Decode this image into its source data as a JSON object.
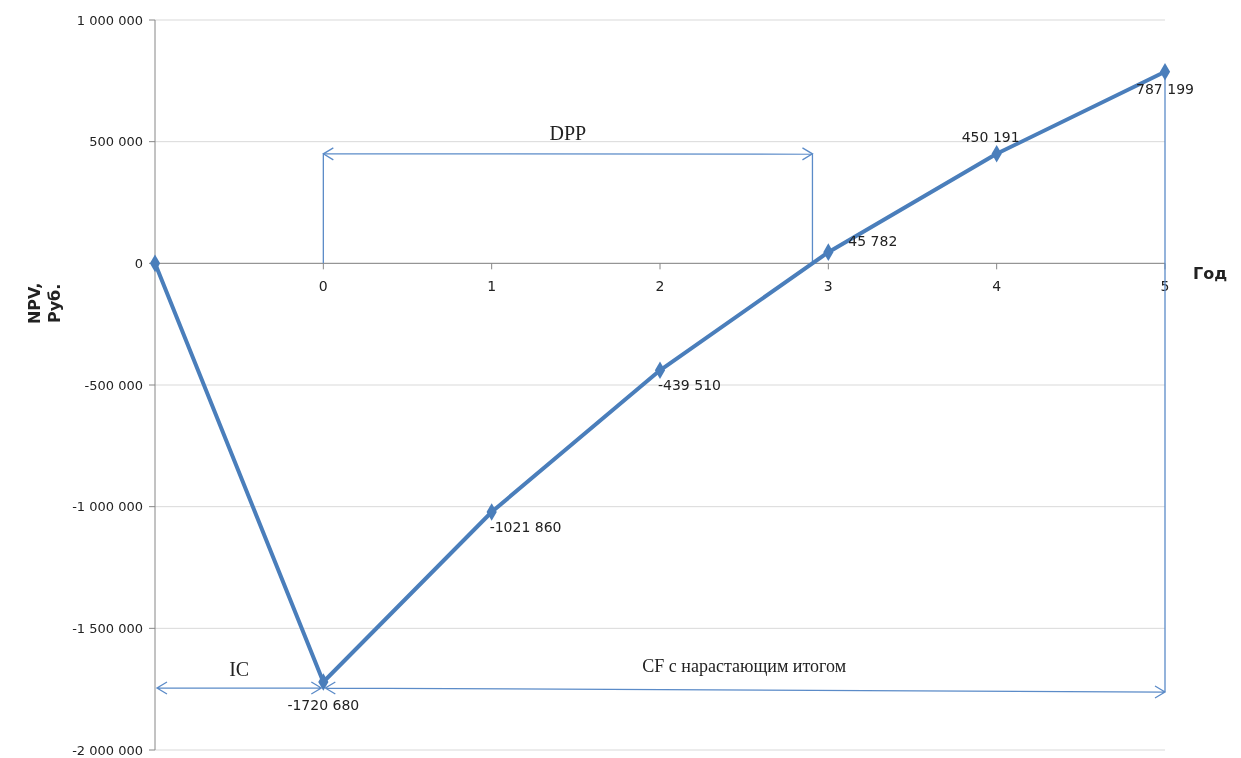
{
  "chart_data": {
    "type": "line",
    "categories": [
      null,
      "0",
      "1",
      "2",
      "3",
      "4",
      "5"
    ],
    "series": [
      {
        "color": "#4a7ebb",
        "values": [
          0,
          -1720680,
          -1021860,
          -439510,
          45782,
          450191,
          787199
        ],
        "value_labels": [
          null,
          "-1720 680",
          "-1021 860",
          "-439 510",
          "45 782",
          "450 191",
          "787 199"
        ]
      }
    ],
    "xlabel": "Год",
    "ylabel": "NPV,\nРуб.",
    "ylim": [
      -2000000,
      1000000
    ],
    "yticks": [
      {
        "value": -2000000,
        "label": "-2 000 000"
      },
      {
        "value": -1500000,
        "label": "-1 500 000"
      },
      {
        "value": -1000000,
        "label": "-1 000 000"
      },
      {
        "value": -500000,
        "label": "-500 000"
      },
      0,
      {
        "value": 500000,
        "label": "500 000"
      },
      {
        "value": 1000000,
        "label": "1 000 000"
      }
    ],
    "grid": "y",
    "marker": "diamond",
    "line_style": "solid",
    "annotations": [
      "DPP",
      "IC",
      "CF с нарастающим итогом"
    ]
  }
}
